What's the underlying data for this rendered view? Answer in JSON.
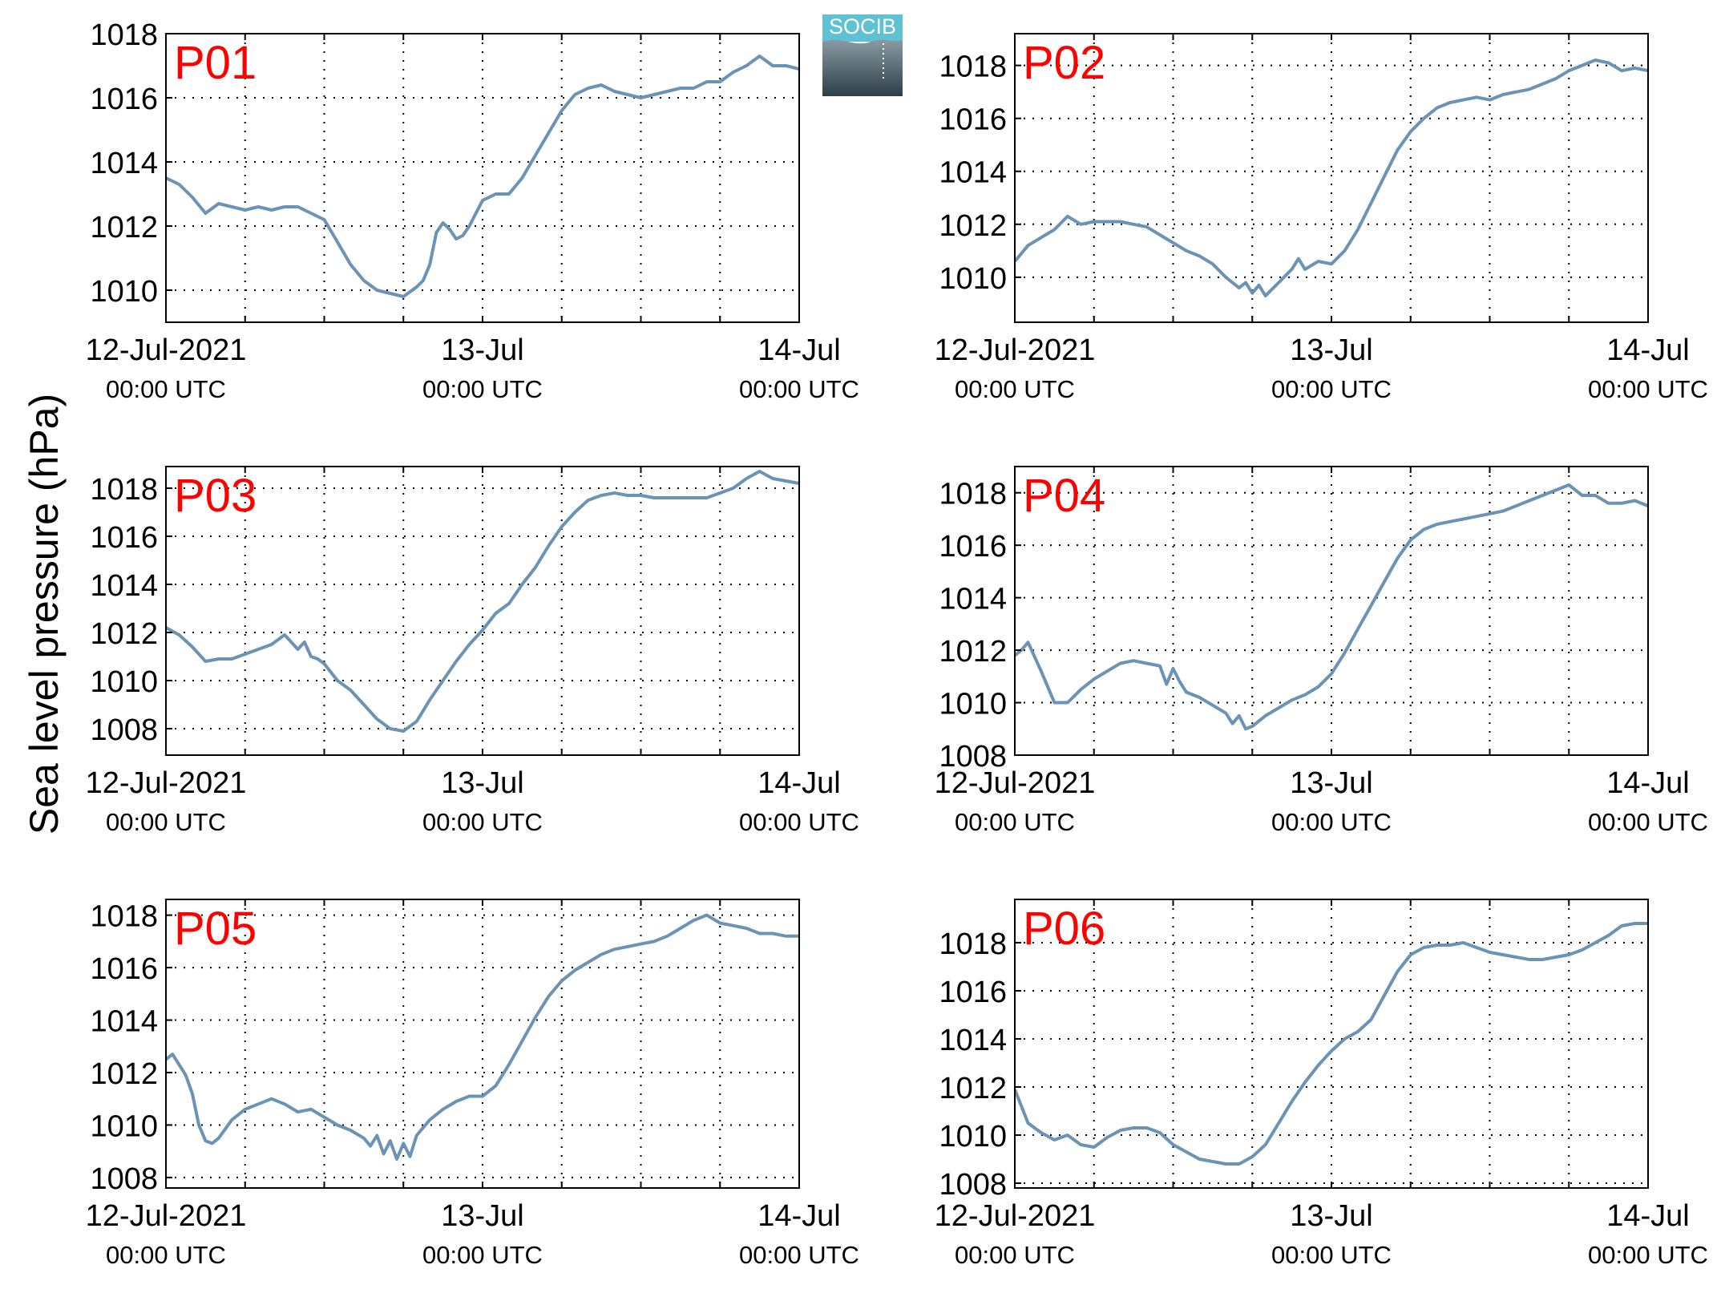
{
  "figure": {
    "ylabel": "Sea level pressure (hPa)",
    "logo_text": "SOCIB"
  },
  "colors": {
    "line": "#6a93b5",
    "panel_label": "#ff0000",
    "axis": "#000000",
    "grid": "#000000",
    "logo_top": "#5fc1d4",
    "logo_bottom": "#2e3e48"
  },
  "chart_data": [
    {
      "panel": "P01",
      "type": "line",
      "x_ticks": [
        {
          "date": "12-Jul-2021",
          "time": "00:00 UTC"
        },
        {
          "date": "13-Jul",
          "time": "00:00 UTC"
        },
        {
          "date": "14-Jul",
          "time": "00:00 UTC"
        }
      ],
      "xlim_hours": [
        0,
        48
      ],
      "ylim": [
        1009,
        1018
      ],
      "yticks": [
        1010,
        1012,
        1014,
        1016,
        1018
      ],
      "grid": true,
      "series": [
        {
          "x": [
            0,
            1,
            2,
            3,
            4,
            5,
            6,
            7,
            8,
            9,
            10,
            11,
            12,
            13,
            14,
            15,
            16,
            17,
            18,
            19,
            19.5,
            20,
            20.5,
            21,
            21.5,
            22,
            22.5,
            23,
            24,
            25,
            26,
            27,
            28,
            29,
            30,
            31,
            32,
            33,
            34,
            35,
            36,
            37,
            38,
            39,
            40,
            41,
            42,
            43,
            44,
            45,
            46,
            47,
            48
          ],
          "y": [
            1013.5,
            1013.3,
            1012.9,
            1012.4,
            1012.7,
            1012.6,
            1012.5,
            1012.6,
            1012.5,
            1012.6,
            1012.6,
            1012.4,
            1012.2,
            1011.5,
            1010.8,
            1010.3,
            1010.0,
            1009.9,
            1009.8,
            1010.1,
            1010.3,
            1010.8,
            1011.8,
            1012.1,
            1011.9,
            1011.6,
            1011.7,
            1012.0,
            1012.8,
            1013.0,
            1013.0,
            1013.5,
            1014.2,
            1014.9,
            1015.6,
            1016.1,
            1016.3,
            1016.4,
            1016.2,
            1016.1,
            1016.0,
            1016.1,
            1016.2,
            1016.3,
            1016.3,
            1016.5,
            1016.5,
            1016.8,
            1017.0,
            1017.3,
            1017.0,
            1017.0,
            1016.9
          ]
        }
      ]
    },
    {
      "panel": "P02",
      "type": "line",
      "x_ticks": [
        {
          "date": "12-Jul-2021",
          "time": "00:00 UTC"
        },
        {
          "date": "13-Jul",
          "time": "00:00 UTC"
        },
        {
          "date": "14-Jul",
          "time": "00:00 UTC"
        }
      ],
      "xlim_hours": [
        0,
        48
      ],
      "ylim": [
        1008.3,
        1019.2
      ],
      "yticks": [
        1010,
        1012,
        1014,
        1016,
        1018
      ],
      "grid": true,
      "series": [
        {
          "x": [
            0,
            1,
            2,
            3,
            4,
            5,
            6,
            7,
            8,
            9,
            10,
            11,
            12,
            13,
            14,
            15,
            16,
            17,
            17.5,
            18,
            18.5,
            19,
            20,
            21,
            21.5,
            22,
            23,
            24,
            25,
            26,
            27,
            28,
            29,
            30,
            31,
            32,
            33,
            34,
            35,
            36,
            37,
            38,
            39,
            40,
            41,
            42,
            43,
            44,
            45,
            46,
            47,
            48
          ],
          "y": [
            1010.6,
            1011.2,
            1011.5,
            1011.8,
            1012.3,
            1012.0,
            1012.1,
            1012.1,
            1012.1,
            1012.0,
            1011.9,
            1011.6,
            1011.3,
            1011.0,
            1010.8,
            1010.5,
            1010.0,
            1009.6,
            1009.8,
            1009.4,
            1009.7,
            1009.3,
            1009.8,
            1010.3,
            1010.7,
            1010.3,
            1010.6,
            1010.5,
            1011.0,
            1011.8,
            1012.8,
            1013.8,
            1014.8,
            1015.5,
            1016.0,
            1016.4,
            1016.6,
            1016.7,
            1016.8,
            1016.7,
            1016.9,
            1017.0,
            1017.1,
            1017.3,
            1017.5,
            1017.8,
            1018.0,
            1018.2,
            1018.1,
            1017.8,
            1017.9,
            1017.8
          ]
        }
      ]
    },
    {
      "panel": "P03",
      "type": "line",
      "x_ticks": [
        {
          "date": "12-Jul-2021",
          "time": "00:00 UTC"
        },
        {
          "date": "13-Jul",
          "time": "00:00 UTC"
        },
        {
          "date": "14-Jul",
          "time": "00:00 UTC"
        }
      ],
      "xlim_hours": [
        0,
        48
      ],
      "ylim": [
        1006.9,
        1018.9
      ],
      "yticks": [
        1008,
        1010,
        1012,
        1014,
        1016,
        1018
      ],
      "grid": true,
      "series": [
        {
          "x": [
            0,
            1,
            2,
            3,
            4,
            5,
            6,
            7,
            8,
            9,
            10,
            10.5,
            11,
            11.5,
            12,
            13,
            14,
            15,
            16,
            17,
            18,
            19,
            20,
            21,
            22,
            23,
            24,
            25,
            26,
            27,
            28,
            29,
            30,
            31,
            32,
            33,
            34,
            35,
            36,
            37,
            38,
            39,
            40,
            41,
            42,
            43,
            44,
            45,
            46,
            47,
            48
          ],
          "y": [
            1012.2,
            1011.9,
            1011.4,
            1010.8,
            1010.9,
            1010.9,
            1011.1,
            1011.3,
            1011.5,
            1011.9,
            1011.3,
            1011.6,
            1011.0,
            1010.9,
            1010.7,
            1010.0,
            1009.6,
            1009.0,
            1008.4,
            1008.0,
            1007.9,
            1008.3,
            1009.2,
            1010.0,
            1010.8,
            1011.5,
            1012.1,
            1012.8,
            1013.2,
            1014.0,
            1014.7,
            1015.6,
            1016.4,
            1017.0,
            1017.5,
            1017.7,
            1017.8,
            1017.7,
            1017.7,
            1017.6,
            1017.6,
            1017.6,
            1017.6,
            1017.6,
            1017.8,
            1018.0,
            1018.4,
            1018.7,
            1018.4,
            1018.3,
            1018.2
          ]
        }
      ]
    },
    {
      "panel": "P04",
      "type": "line",
      "x_ticks": [
        {
          "date": "12-Jul-2021",
          "time": "00:00 UTC"
        },
        {
          "date": "13-Jul",
          "time": "00:00 UTC"
        },
        {
          "date": "14-Jul",
          "time": "00:00 UTC"
        }
      ],
      "xlim_hours": [
        0,
        48
      ],
      "ylim": [
        1008,
        1019
      ],
      "yticks": [
        1008,
        1010,
        1012,
        1014,
        1016,
        1018
      ],
      "grid": true,
      "series": [
        {
          "x": [
            0,
            0.5,
            1,
            2,
            3,
            4,
            5,
            6,
            7,
            8,
            9,
            10,
            11,
            11.5,
            12,
            12.5,
            13,
            14,
            15,
            16,
            16.5,
            17,
            17.5,
            18,
            19,
            20,
            21,
            22,
            23,
            24,
            25,
            26,
            27,
            28,
            29,
            30,
            31,
            32,
            33,
            34,
            35,
            36,
            37,
            38,
            39,
            40,
            41,
            42,
            43,
            44,
            45,
            46,
            47,
            48
          ],
          "y": [
            1011.8,
            1012.0,
            1012.3,
            1011.2,
            1010.0,
            1010.0,
            1010.5,
            1010.9,
            1011.2,
            1011.5,
            1011.6,
            1011.5,
            1011.4,
            1010.7,
            1011.3,
            1010.8,
            1010.4,
            1010.2,
            1009.9,
            1009.6,
            1009.2,
            1009.5,
            1009.0,
            1009.1,
            1009.5,
            1009.8,
            1010.1,
            1010.3,
            1010.6,
            1011.1,
            1011.9,
            1012.8,
            1013.7,
            1014.6,
            1015.5,
            1016.2,
            1016.6,
            1016.8,
            1016.9,
            1017.0,
            1017.1,
            1017.2,
            1017.3,
            1017.5,
            1017.7,
            1017.9,
            1018.1,
            1018.3,
            1017.9,
            1017.9,
            1017.6,
            1017.6,
            1017.7,
            1017.5
          ]
        }
      ]
    },
    {
      "panel": "P05",
      "type": "line",
      "x_ticks": [
        {
          "date": "12-Jul-2021",
          "time": "00:00 UTC"
        },
        {
          "date": "13-Jul",
          "time": "00:00 UTC"
        },
        {
          "date": "14-Jul",
          "time": "00:00 UTC"
        }
      ],
      "xlim_hours": [
        0,
        48
      ],
      "ylim": [
        1007.6,
        1018.6
      ],
      "yticks": [
        1008,
        1010,
        1012,
        1014,
        1016,
        1018
      ],
      "grid": true,
      "series": [
        {
          "x": [
            0,
            0.5,
            1,
            1.5,
            2,
            2.5,
            3,
            3.5,
            4,
            5,
            6,
            7,
            8,
            9,
            10,
            11,
            12,
            13,
            14,
            15,
            15.5,
            16,
            16.5,
            17,
            17.5,
            18,
            18.5,
            19,
            20,
            21,
            22,
            23,
            24,
            25,
            26,
            27,
            28,
            29,
            30,
            31,
            32,
            33,
            34,
            35,
            36,
            37,
            38,
            39,
            40,
            41,
            42,
            43,
            44,
            45,
            46,
            47,
            48
          ],
          "y": [
            1012.5,
            1012.7,
            1012.3,
            1011.9,
            1011.2,
            1010.0,
            1009.4,
            1009.3,
            1009.5,
            1010.2,
            1010.6,
            1010.8,
            1011.0,
            1010.8,
            1010.5,
            1010.6,
            1010.3,
            1010.0,
            1009.8,
            1009.5,
            1009.2,
            1009.6,
            1008.9,
            1009.4,
            1008.7,
            1009.3,
            1008.8,
            1009.6,
            1010.2,
            1010.6,
            1010.9,
            1011.1,
            1011.1,
            1011.5,
            1012.3,
            1013.2,
            1014.1,
            1014.9,
            1015.5,
            1015.9,
            1016.2,
            1016.5,
            1016.7,
            1016.8,
            1016.9,
            1017.0,
            1017.2,
            1017.5,
            1017.8,
            1018.0,
            1017.7,
            1017.6,
            1017.5,
            1017.3,
            1017.3,
            1017.2,
            1017.2
          ]
        }
      ]
    },
    {
      "panel": "P06",
      "type": "line",
      "x_ticks": [
        {
          "date": "12-Jul-2021",
          "time": "00:00 UTC"
        },
        {
          "date": "13-Jul",
          "time": "00:00 UTC"
        },
        {
          "date": "14-Jul",
          "time": "00:00 UTC"
        }
      ],
      "xlim_hours": [
        0,
        48
      ],
      "ylim": [
        1007.8,
        1019.8
      ],
      "yticks": [
        1008,
        1010,
        1012,
        1014,
        1016,
        1018
      ],
      "grid": true,
      "series": [
        {
          "x": [
            0,
            1,
            2,
            3,
            4,
            5,
            6,
            7,
            8,
            9,
            10,
            11,
            12,
            13,
            14,
            15,
            16,
            17,
            18,
            19,
            20,
            21,
            22,
            23,
            24,
            25,
            26,
            27,
            28,
            29,
            30,
            31,
            32,
            33,
            34,
            35,
            36,
            37,
            38,
            39,
            40,
            41,
            42,
            43,
            44,
            45,
            46,
            47,
            48
          ],
          "y": [
            1011.9,
            1010.5,
            1010.1,
            1009.8,
            1010.0,
            1009.6,
            1009.5,
            1009.9,
            1010.2,
            1010.3,
            1010.3,
            1010.1,
            1009.6,
            1009.3,
            1009.0,
            1008.9,
            1008.8,
            1008.8,
            1009.1,
            1009.6,
            1010.5,
            1011.4,
            1012.2,
            1012.9,
            1013.5,
            1014.0,
            1014.3,
            1014.8,
            1015.8,
            1016.8,
            1017.5,
            1017.8,
            1017.9,
            1017.9,
            1018.0,
            1017.8,
            1017.6,
            1017.5,
            1017.4,
            1017.3,
            1017.3,
            1017.4,
            1017.5,
            1017.7,
            1018.0,
            1018.3,
            1018.7,
            1018.8,
            1018.8
          ]
        }
      ]
    }
  ]
}
